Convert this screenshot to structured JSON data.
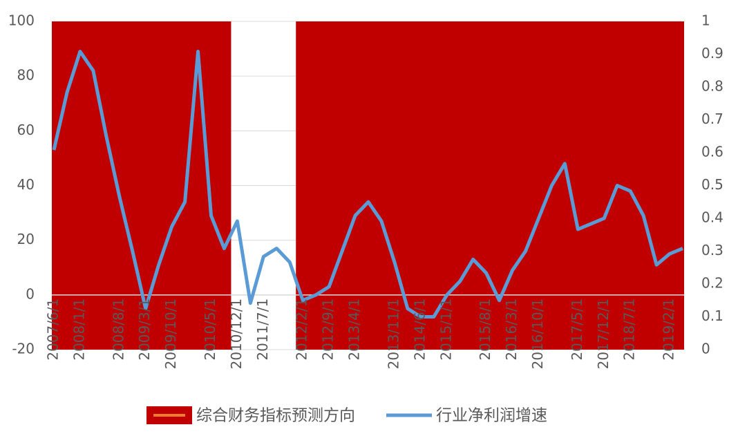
{
  "chart_data": {
    "type": "bar-line",
    "categories": [
      "2007/6/1",
      null,
      "2008/1/1",
      null,
      null,
      "2008/8/1",
      null,
      "2009/3/1",
      null,
      "2009/10/1",
      null,
      null,
      "2010/5/1",
      null,
      "2010/12/1",
      null,
      "2011/7/1",
      null,
      null,
      "2012/2/1",
      null,
      "2012/9/1",
      null,
      "2013/4/1",
      null,
      null,
      "2013/11/1",
      null,
      "2014/6/1",
      null,
      "2015/1/1",
      null,
      null,
      "2015/8/1",
      null,
      "2016/3/1",
      null,
      "2016/10/1",
      null,
      null,
      "2017/5/1",
      null,
      "2017/12/1",
      null,
      "2018/7/1",
      null,
      null,
      "2019/2/1",
      null
    ],
    "series": [
      {
        "name": "综合财务指标预测方向",
        "type": "bar",
        "axis": "y2",
        "color": "#c00000",
        "values": [
          1,
          1,
          1,
          1,
          1,
          1,
          1,
          1,
          1,
          1,
          1,
          1,
          1,
          1,
          0,
          0,
          0,
          0,
          0,
          1,
          1,
          1,
          1,
          1,
          1,
          1,
          1,
          1,
          1,
          1,
          1,
          1,
          1,
          1,
          1,
          1,
          1,
          1,
          1,
          1,
          1,
          1,
          1,
          1,
          1,
          1,
          1,
          1,
          1
        ]
      },
      {
        "name": "行业净利润增速",
        "type": "line",
        "color": "#5b9bd5",
        "values": [
          53,
          74,
          89,
          82,
          58,
          36,
          16,
          -5,
          11,
          25,
          34,
          89,
          29,
          17,
          27,
          -3,
          14,
          17,
          12,
          -2,
          0,
          3,
          16,
          29,
          34,
          27,
          12,
          -5,
          -8,
          -8,
          0,
          5,
          13,
          8,
          -2,
          9,
          16,
          28,
          40,
          48,
          24,
          26,
          28,
          40,
          38,
          29,
          11,
          15,
          17
        ]
      }
    ],
    "ylim": [
      -20,
      100
    ],
    "yticks": [
      -20,
      0,
      20,
      40,
      60,
      80,
      100
    ],
    "y2lim": [
      0,
      1
    ],
    "y2ticks": [
      0,
      0.1,
      0.2,
      0.3,
      0.4,
      0.5,
      0.6,
      0.7,
      0.8,
      0.9,
      1
    ],
    "grid": true
  }
}
